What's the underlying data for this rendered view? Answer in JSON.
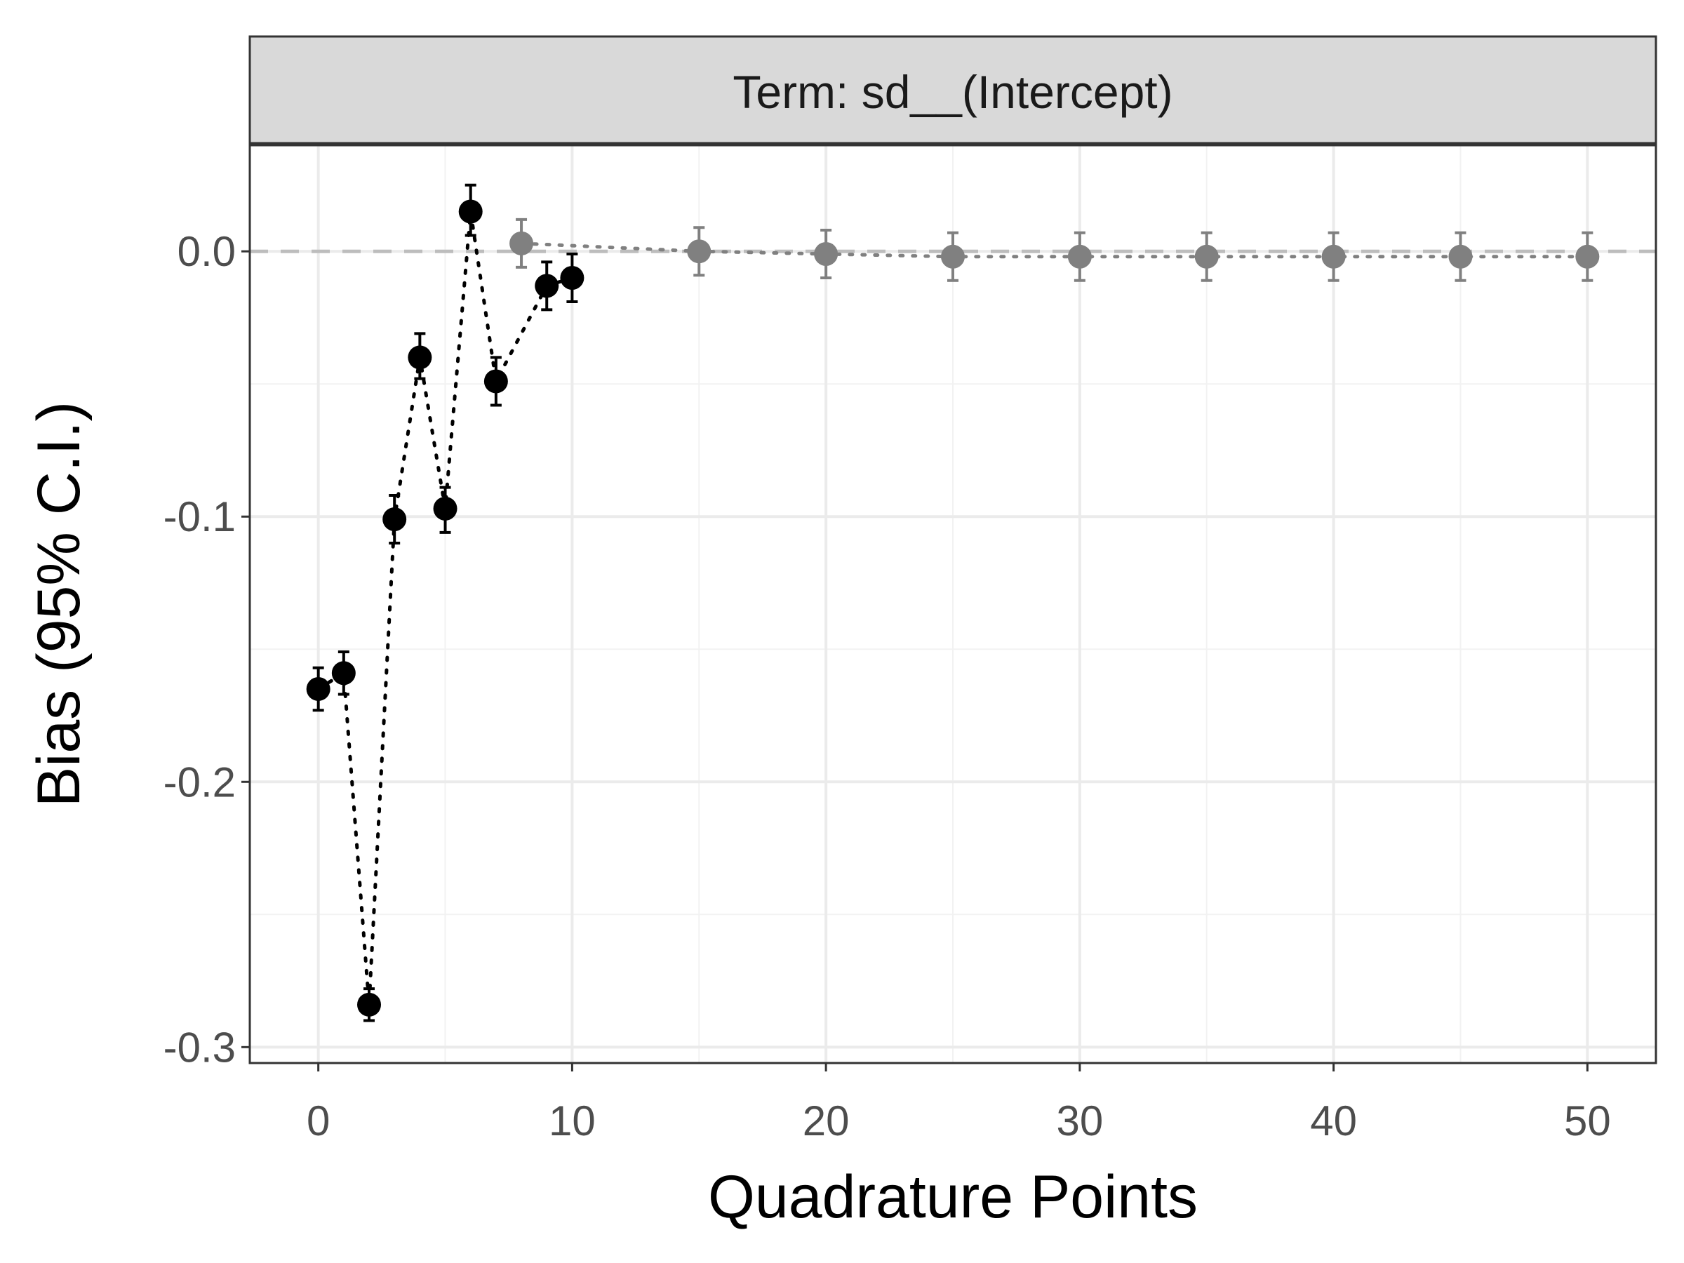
{
  "chart_data": {
    "type": "scatter",
    "facet_label": "Term: sd__(Intercept)",
    "xlabel": "Quadrature Points",
    "ylabel": "Bias (95% C.I.)",
    "xlim": [
      -2.7,
      52.7
    ],
    "ylim": [
      -0.306,
      0.04
    ],
    "x_ticks": [
      0,
      10,
      20,
      30,
      40,
      50
    ],
    "x_tick_labels": [
      "0",
      "10",
      "20",
      "30",
      "40",
      "50"
    ],
    "y_ticks": [
      0.0,
      -0.1,
      -0.2,
      -0.3
    ],
    "y_tick_labels": [
      "0.0",
      "-0.1",
      "-0.2",
      "-0.3"
    ],
    "grid": true,
    "reference_line": {
      "y": 0,
      "style": "dashed",
      "color": "#bdbdbd"
    },
    "series": [
      {
        "color": "#000000",
        "connect": "dotted",
        "points": [
          {
            "x": 0,
            "y": -0.165,
            "lo": -0.173,
            "hi": -0.157
          },
          {
            "x": 1,
            "y": -0.159,
            "lo": -0.167,
            "hi": -0.151
          },
          {
            "x": 2,
            "y": -0.284,
            "lo": -0.29,
            "hi": -0.278
          },
          {
            "x": 3,
            "y": -0.101,
            "lo": -0.11,
            "hi": -0.092
          },
          {
            "x": 4,
            "y": -0.04,
            "lo": -0.048,
            "hi": -0.031
          },
          {
            "x": 5,
            "y": -0.097,
            "lo": -0.106,
            "hi": -0.089
          },
          {
            "x": 6,
            "y": 0.015,
            "lo": 0.006,
            "hi": 0.025
          },
          {
            "x": 7,
            "y": -0.049,
            "lo": -0.058,
            "hi": -0.04
          },
          {
            "x": 9,
            "y": -0.013,
            "lo": -0.022,
            "hi": -0.004
          },
          {
            "x": 10,
            "y": -0.01,
            "lo": -0.019,
            "hi": -0.001
          }
        ]
      },
      {
        "color": "#808080",
        "connect": "dotted",
        "points": [
          {
            "x": 8,
            "y": 0.003,
            "lo": -0.006,
            "hi": 0.012
          },
          {
            "x": 15,
            "y": 0.0,
            "lo": -0.009,
            "hi": 0.009
          },
          {
            "x": 20,
            "y": -0.001,
            "lo": -0.01,
            "hi": 0.008
          },
          {
            "x": 25,
            "y": -0.002,
            "lo": -0.011,
            "hi": 0.007
          },
          {
            "x": 30,
            "y": -0.002,
            "lo": -0.011,
            "hi": 0.007
          },
          {
            "x": 35,
            "y": -0.002,
            "lo": -0.011,
            "hi": 0.007
          },
          {
            "x": 40,
            "y": -0.002,
            "lo": -0.011,
            "hi": 0.007
          },
          {
            "x": 45,
            "y": -0.002,
            "lo": -0.011,
            "hi": 0.007
          },
          {
            "x": 50,
            "y": -0.002,
            "lo": -0.011,
            "hi": 0.007
          }
        ]
      }
    ]
  }
}
